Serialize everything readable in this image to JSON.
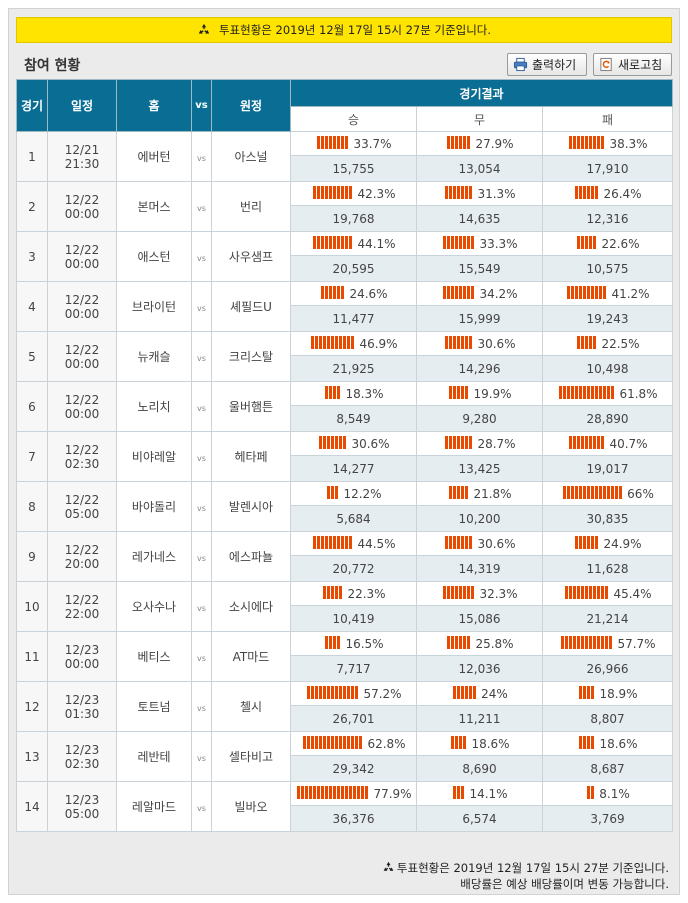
{
  "notice": {
    "text": "투표현황은 2019년 12월 17일 15시 27분 기준입니다."
  },
  "title": "참여 현황",
  "buttons": {
    "print": "출력하기",
    "refresh": "새로고침"
  },
  "columns": {
    "round": "경기",
    "schedule": "일정",
    "home": "홈",
    "vs": "vs",
    "away": "원정",
    "result": "경기결과",
    "win": "승",
    "draw": "무",
    "lose": "패"
  },
  "rows": [
    {
      "no": "1",
      "date": "12/21 21:30",
      "home": "에버턴",
      "away": "아스널",
      "win": {
        "pct": 33.7,
        "label": "33.7%",
        "count": "15,755"
      },
      "draw": {
        "pct": 27.9,
        "label": "27.9%",
        "count": "13,054"
      },
      "lose": {
        "pct": 38.3,
        "label": "38.3%",
        "count": "17,910"
      }
    },
    {
      "no": "2",
      "date": "12/22 00:00",
      "home": "본머스",
      "away": "번리",
      "win": {
        "pct": 42.3,
        "label": "42.3%",
        "count": "19,768"
      },
      "draw": {
        "pct": 31.3,
        "label": "31.3%",
        "count": "14,635"
      },
      "lose": {
        "pct": 26.4,
        "label": "26.4%",
        "count": "12,316"
      }
    },
    {
      "no": "3",
      "date": "12/22 00:00",
      "home": "애스턴",
      "away": "사우샘프",
      "win": {
        "pct": 44.1,
        "label": "44.1%",
        "count": "20,595"
      },
      "draw": {
        "pct": 33.3,
        "label": "33.3%",
        "count": "15,549"
      },
      "lose": {
        "pct": 22.6,
        "label": "22.6%",
        "count": "10,575"
      }
    },
    {
      "no": "4",
      "date": "12/22 00:00",
      "home": "브라이턴",
      "away": "셰필드U",
      "win": {
        "pct": 24.6,
        "label": "24.6%",
        "count": "11,477"
      },
      "draw": {
        "pct": 34.2,
        "label": "34.2%",
        "count": "15,999"
      },
      "lose": {
        "pct": 41.2,
        "label": "41.2%",
        "count": "19,243"
      }
    },
    {
      "no": "5",
      "date": "12/22 00:00",
      "home": "뉴캐슬",
      "away": "크리스탈",
      "win": {
        "pct": 46.9,
        "label": "46.9%",
        "count": "21,925"
      },
      "draw": {
        "pct": 30.6,
        "label": "30.6%",
        "count": "14,296"
      },
      "lose": {
        "pct": 22.5,
        "label": "22.5%",
        "count": "10,498"
      }
    },
    {
      "no": "6",
      "date": "12/22 00:00",
      "home": "노리치",
      "away": "울버햄튼",
      "win": {
        "pct": 18.3,
        "label": "18.3%",
        "count": "8,549"
      },
      "draw": {
        "pct": 19.9,
        "label": "19.9%",
        "count": "9,280"
      },
      "lose": {
        "pct": 61.8,
        "label": "61.8%",
        "count": "28,890"
      }
    },
    {
      "no": "7",
      "date": "12/22 02:30",
      "home": "비야레알",
      "away": "헤타페",
      "win": {
        "pct": 30.6,
        "label": "30.6%",
        "count": "14,277"
      },
      "draw": {
        "pct": 28.7,
        "label": "28.7%",
        "count": "13,425"
      },
      "lose": {
        "pct": 40.7,
        "label": "40.7%",
        "count": "19,017"
      }
    },
    {
      "no": "8",
      "date": "12/22 05:00",
      "home": "바야돌리",
      "away": "발렌시아",
      "win": {
        "pct": 12.2,
        "label": "12.2%",
        "count": "5,684"
      },
      "draw": {
        "pct": 21.8,
        "label": "21.8%",
        "count": "10,200"
      },
      "lose": {
        "pct": 66,
        "label": "66%",
        "count": "30,835"
      }
    },
    {
      "no": "9",
      "date": "12/22 20:00",
      "home": "레가네스",
      "away": "에스파뇰",
      "win": {
        "pct": 44.5,
        "label": "44.5%",
        "count": "20,772"
      },
      "draw": {
        "pct": 30.6,
        "label": "30.6%",
        "count": "14,319"
      },
      "lose": {
        "pct": 24.9,
        "label": "24.9%",
        "count": "11,628"
      }
    },
    {
      "no": "10",
      "date": "12/22 22:00",
      "home": "오사수나",
      "away": "소시에다",
      "win": {
        "pct": 22.3,
        "label": "22.3%",
        "count": "10,419"
      },
      "draw": {
        "pct": 32.3,
        "label": "32.3%",
        "count": "15,086"
      },
      "lose": {
        "pct": 45.4,
        "label": "45.4%",
        "count": "21,214"
      }
    },
    {
      "no": "11",
      "date": "12/23 00:00",
      "home": "베티스",
      "away": "AT마드",
      "win": {
        "pct": 16.5,
        "label": "16.5%",
        "count": "7,717"
      },
      "draw": {
        "pct": 25.8,
        "label": "25.8%",
        "count": "12,036"
      },
      "lose": {
        "pct": 57.7,
        "label": "57.7%",
        "count": "26,966"
      }
    },
    {
      "no": "12",
      "date": "12/23 01:30",
      "home": "토트넘",
      "away": "첼시",
      "win": {
        "pct": 57.2,
        "label": "57.2%",
        "count": "26,701"
      },
      "draw": {
        "pct": 24,
        "label": "24%",
        "count": "11,211"
      },
      "lose": {
        "pct": 18.9,
        "label": "18.9%",
        "count": "8,807"
      }
    },
    {
      "no": "13",
      "date": "12/23 02:30",
      "home": "레반테",
      "away": "셀타비고",
      "win": {
        "pct": 62.8,
        "label": "62.8%",
        "count": "29,342"
      },
      "draw": {
        "pct": 18.6,
        "label": "18.6%",
        "count": "8,690"
      },
      "lose": {
        "pct": 18.6,
        "label": "18.6%",
        "count": "8,687"
      }
    },
    {
      "no": "14",
      "date": "12/23 05:00",
      "home": "레알마드",
      "away": "빌바오",
      "win": {
        "pct": 77.9,
        "label": "77.9%",
        "count": "36,376"
      },
      "draw": {
        "pct": 14.1,
        "label": "14.1%",
        "count": "6,574"
      },
      "lose": {
        "pct": 8.1,
        "label": "8.1%",
        "count": "3,769"
      }
    }
  ],
  "footer": {
    "line1": "투표현황은 2019년 12월 17일 15시 27분 기준입니다.",
    "line2": "배당률은 예상 배당률이며 변동 가능합니다."
  },
  "colors": {
    "header": "#0a6d93",
    "bar": "#e84a00",
    "notice": "#ffe400"
  },
  "icons": {
    "notice": "recycle-icon",
    "print": "printer-icon",
    "refresh": "refresh-icon"
  }
}
